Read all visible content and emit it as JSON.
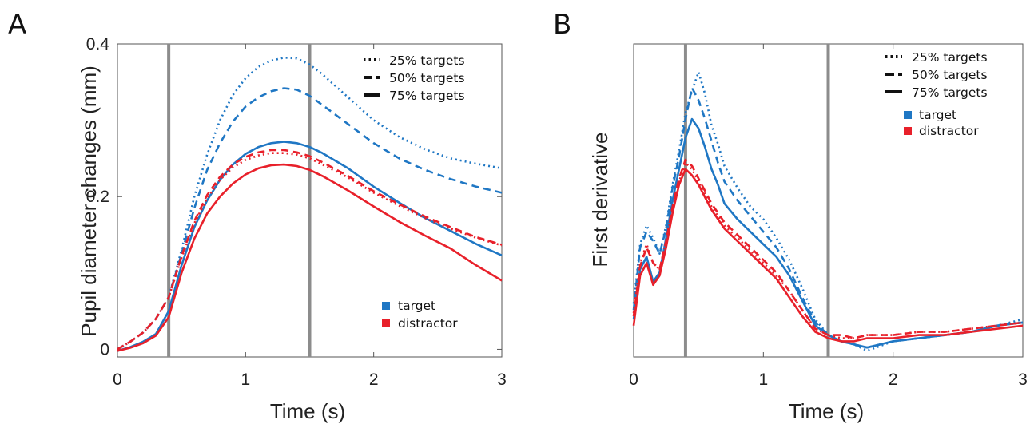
{
  "chart_data": [
    {
      "panel_label": "A",
      "type": "line",
      "xlabel": "Time (s)",
      "ylabel": "Pupil diameter changes (mm)",
      "xlim": [
        0,
        3
      ],
      "ylim": [
        -0.01,
        0.4
      ],
      "xticks": [
        0,
        1,
        2,
        3
      ],
      "yticks": [
        0,
        0.2,
        0.4
      ],
      "xtick_labels": [
        "0",
        "1",
        "2",
        "3"
      ],
      "ytick_labels": [
        "0",
        "0.2",
        "0.4"
      ],
      "vertical_lines": [
        0.4,
        1.5
      ],
      "legend_styles": [
        {
          "label": "25% targets",
          "dash": "dotted"
        },
        {
          "label": "50% targets",
          "dash": "dashed"
        },
        {
          "label": "75% targets",
          "dash": "solid"
        }
      ],
      "legend_colors": [
        {
          "label": "target",
          "color": "#1f77c4"
        },
        {
          "label": "distractor",
          "color": "#e8202a"
        }
      ],
      "series": [
        {
          "group": "target",
          "dash": "dotted",
          "color": "#1f77c4",
          "x": [
            0,
            0.1,
            0.2,
            0.3,
            0.4,
            0.5,
            0.6,
            0.7,
            0.8,
            0.9,
            1.0,
            1.1,
            1.2,
            1.3,
            1.4,
            1.5,
            1.6,
            1.8,
            2.0,
            2.2,
            2.4,
            2.6,
            2.8,
            3.0
          ],
          "y": [
            0,
            0.01,
            0.022,
            0.04,
            0.068,
            0.13,
            0.2,
            0.255,
            0.3,
            0.333,
            0.355,
            0.37,
            0.378,
            0.382,
            0.381,
            0.373,
            0.36,
            0.33,
            0.3,
            0.278,
            0.262,
            0.25,
            0.243,
            0.237
          ]
        },
        {
          "group": "target",
          "dash": "dashed",
          "color": "#1f77c4",
          "x": [
            0,
            0.1,
            0.2,
            0.3,
            0.4,
            0.5,
            0.6,
            0.7,
            0.8,
            0.9,
            1.0,
            1.1,
            1.2,
            1.3,
            1.4,
            1.5,
            1.6,
            1.8,
            2.0,
            2.2,
            2.4,
            2.6,
            2.8,
            3.0
          ],
          "y": [
            0,
            0.01,
            0.022,
            0.04,
            0.068,
            0.125,
            0.185,
            0.235,
            0.27,
            0.298,
            0.318,
            0.33,
            0.338,
            0.342,
            0.34,
            0.332,
            0.32,
            0.295,
            0.27,
            0.25,
            0.235,
            0.223,
            0.213,
            0.205
          ]
        },
        {
          "group": "target",
          "dash": "solid",
          "color": "#1f77c4",
          "x": [
            0,
            0.1,
            0.2,
            0.3,
            0.4,
            0.5,
            0.6,
            0.7,
            0.8,
            0.9,
            1.0,
            1.1,
            1.2,
            1.3,
            1.4,
            1.5,
            1.6,
            1.8,
            2.0,
            2.2,
            2.4,
            2.6,
            2.8,
            3.0
          ],
          "y": [
            -0.002,
            0.003,
            0.01,
            0.02,
            0.05,
            0.11,
            0.16,
            0.195,
            0.222,
            0.242,
            0.256,
            0.265,
            0.27,
            0.272,
            0.27,
            0.265,
            0.257,
            0.237,
            0.213,
            0.192,
            0.172,
            0.155,
            0.138,
            0.123
          ]
        },
        {
          "group": "distractor",
          "dash": "dotted",
          "color": "#e8202a",
          "x": [
            0,
            0.1,
            0.2,
            0.3,
            0.4,
            0.5,
            0.6,
            0.7,
            0.8,
            0.9,
            1.0,
            1.1,
            1.2,
            1.3,
            1.4,
            1.5,
            1.6,
            1.8,
            2.0,
            2.2,
            2.4,
            2.6,
            2.8,
            3.0
          ],
          "y": [
            0,
            0.01,
            0.022,
            0.04,
            0.068,
            0.12,
            0.165,
            0.198,
            0.222,
            0.238,
            0.248,
            0.254,
            0.257,
            0.257,
            0.255,
            0.25,
            0.242,
            0.225,
            0.205,
            0.188,
            0.172,
            0.158,
            0.146,
            0.136
          ]
        },
        {
          "group": "distractor",
          "dash": "dashed",
          "color": "#e8202a",
          "x": [
            0,
            0.1,
            0.2,
            0.3,
            0.4,
            0.5,
            0.6,
            0.7,
            0.8,
            0.9,
            1.0,
            1.1,
            1.2,
            1.3,
            1.4,
            1.5,
            1.6,
            1.8,
            2.0,
            2.2,
            2.4,
            2.6,
            2.8,
            3.0
          ],
          "y": [
            0,
            0.01,
            0.022,
            0.04,
            0.068,
            0.122,
            0.168,
            0.202,
            0.226,
            0.242,
            0.252,
            0.258,
            0.261,
            0.261,
            0.258,
            0.253,
            0.245,
            0.227,
            0.207,
            0.19,
            0.174,
            0.16,
            0.147,
            0.137
          ]
        },
        {
          "group": "distractor",
          "dash": "solid",
          "color": "#e8202a",
          "x": [
            0,
            0.1,
            0.2,
            0.3,
            0.4,
            0.5,
            0.6,
            0.7,
            0.8,
            0.9,
            1.0,
            1.1,
            1.2,
            1.3,
            1.4,
            1.5,
            1.6,
            1.8,
            2.0,
            2.2,
            2.4,
            2.6,
            2.8,
            3.0
          ],
          "y": [
            -0.002,
            0.002,
            0.008,
            0.018,
            0.042,
            0.1,
            0.145,
            0.178,
            0.2,
            0.217,
            0.229,
            0.237,
            0.241,
            0.242,
            0.24,
            0.235,
            0.227,
            0.208,
            0.187,
            0.167,
            0.149,
            0.132,
            0.11,
            0.09
          ]
        }
      ]
    },
    {
      "panel_label": "B",
      "type": "line",
      "xlabel": "Time (s)",
      "ylabel": "First derivative",
      "xlim": [
        0,
        3
      ],
      "ylim": [
        0,
        1
      ],
      "xticks": [
        0,
        1,
        2,
        3
      ],
      "xtick_labels": [
        "0",
        "1",
        "2",
        "3"
      ],
      "yticks": [],
      "ytick_labels": [],
      "vertical_lines": [
        0.4,
        1.5
      ],
      "legend_styles": [
        {
          "label": "25% targets",
          "dash": "dotted"
        },
        {
          "label": "50% targets",
          "dash": "dashed"
        },
        {
          "label": "75% targets",
          "dash": "solid"
        }
      ],
      "legend_colors": [
        {
          "label": "target",
          "color": "#1f77c4"
        },
        {
          "label": "distractor",
          "color": "#e8202a"
        }
      ],
      "series": [
        {
          "group": "target",
          "dash": "dotted",
          "color": "#1f77c4",
          "x": [
            0,
            0.05,
            0.1,
            0.15,
            0.2,
            0.25,
            0.3,
            0.35,
            0.4,
            0.45,
            0.5,
            0.55,
            0.6,
            0.65,
            0.7,
            0.8,
            0.9,
            1.0,
            1.1,
            1.2,
            1.3,
            1.4,
            1.5,
            1.6,
            1.7,
            1.8,
            2.0,
            2.2,
            2.4,
            2.6,
            2.8,
            3.0
          ],
          "y": [
            0.17,
            0.36,
            0.42,
            0.38,
            0.33,
            0.42,
            0.55,
            0.66,
            0.78,
            0.85,
            0.91,
            0.84,
            0.74,
            0.68,
            0.61,
            0.54,
            0.48,
            0.44,
            0.38,
            0.31,
            0.22,
            0.12,
            0.07,
            0.05,
            0.04,
            0.02,
            0.05,
            0.06,
            0.07,
            0.08,
            0.1,
            0.12
          ]
        },
        {
          "group": "target",
          "dash": "dashed",
          "color": "#1f77c4",
          "x": [
            0,
            0.05,
            0.1,
            0.15,
            0.2,
            0.25,
            0.3,
            0.35,
            0.4,
            0.45,
            0.5,
            0.55,
            0.6,
            0.65,
            0.7,
            0.8,
            0.9,
            1.0,
            1.1,
            1.2,
            1.3,
            1.4,
            1.5,
            1.6,
            1.7,
            1.8,
            2.0,
            2.2,
            2.4,
            2.6,
            2.8,
            3.0
          ],
          "y": [
            0.15,
            0.35,
            0.4,
            0.37,
            0.33,
            0.41,
            0.54,
            0.64,
            0.76,
            0.86,
            0.82,
            0.76,
            0.69,
            0.62,
            0.56,
            0.5,
            0.45,
            0.4,
            0.35,
            0.28,
            0.19,
            0.11,
            0.07,
            0.05,
            0.04,
            0.03,
            0.05,
            0.06,
            0.07,
            0.08,
            0.1,
            0.11
          ]
        },
        {
          "group": "target",
          "dash": "solid",
          "color": "#1f77c4",
          "x": [
            0,
            0.05,
            0.1,
            0.15,
            0.2,
            0.25,
            0.3,
            0.35,
            0.4,
            0.45,
            0.5,
            0.55,
            0.6,
            0.65,
            0.7,
            0.8,
            0.9,
            1.0,
            1.1,
            1.2,
            1.3,
            1.4,
            1.5,
            1.6,
            1.7,
            1.8,
            2.0,
            2.2,
            2.4,
            2.6,
            2.8,
            3.0
          ],
          "y": [
            0.12,
            0.28,
            0.32,
            0.24,
            0.27,
            0.38,
            0.5,
            0.6,
            0.7,
            0.76,
            0.73,
            0.67,
            0.6,
            0.55,
            0.49,
            0.44,
            0.4,
            0.36,
            0.32,
            0.26,
            0.18,
            0.1,
            0.07,
            0.05,
            0.04,
            0.03,
            0.05,
            0.06,
            0.07,
            0.08,
            0.1,
            0.11
          ]
        },
        {
          "group": "distractor",
          "dash": "dotted",
          "color": "#e8202a",
          "x": [
            0,
            0.05,
            0.1,
            0.15,
            0.2,
            0.25,
            0.3,
            0.35,
            0.4,
            0.45,
            0.5,
            0.55,
            0.6,
            0.65,
            0.7,
            0.8,
            0.9,
            1.0,
            1.1,
            1.2,
            1.3,
            1.4,
            1.5,
            1.6,
            1.7,
            1.8,
            2.0,
            2.2,
            2.4,
            2.6,
            2.8,
            3.0
          ],
          "y": [
            0.14,
            0.3,
            0.36,
            0.3,
            0.28,
            0.37,
            0.47,
            0.56,
            0.62,
            0.6,
            0.56,
            0.52,
            0.48,
            0.45,
            0.42,
            0.38,
            0.34,
            0.3,
            0.26,
            0.21,
            0.15,
            0.09,
            0.07,
            0.06,
            0.06,
            0.07,
            0.07,
            0.08,
            0.08,
            0.09,
            0.1,
            0.11
          ]
        },
        {
          "group": "distractor",
          "dash": "dashed",
          "color": "#e8202a",
          "x": [
            0,
            0.05,
            0.1,
            0.15,
            0.2,
            0.25,
            0.3,
            0.35,
            0.4,
            0.45,
            0.5,
            0.55,
            0.6,
            0.65,
            0.7,
            0.8,
            0.9,
            1.0,
            1.1,
            1.2,
            1.3,
            1.4,
            1.5,
            1.6,
            1.7,
            1.8,
            2.0,
            2.2,
            2.4,
            2.6,
            2.8,
            3.0
          ],
          "y": [
            0.13,
            0.29,
            0.35,
            0.3,
            0.28,
            0.37,
            0.48,
            0.57,
            0.63,
            0.61,
            0.57,
            0.53,
            0.49,
            0.46,
            0.43,
            0.39,
            0.35,
            0.31,
            0.27,
            0.21,
            0.15,
            0.09,
            0.07,
            0.07,
            0.06,
            0.07,
            0.07,
            0.08,
            0.08,
            0.09,
            0.1,
            0.11
          ]
        },
        {
          "group": "distractor",
          "dash": "solid",
          "color": "#e8202a",
          "x": [
            0,
            0.05,
            0.1,
            0.15,
            0.2,
            0.25,
            0.3,
            0.35,
            0.4,
            0.45,
            0.5,
            0.55,
            0.6,
            0.65,
            0.7,
            0.8,
            0.9,
            1.0,
            1.1,
            1.2,
            1.3,
            1.4,
            1.5,
            1.6,
            1.7,
            1.8,
            2.0,
            2.2,
            2.4,
            2.6,
            2.8,
            3.0
          ],
          "y": [
            0.1,
            0.26,
            0.3,
            0.23,
            0.26,
            0.35,
            0.46,
            0.55,
            0.6,
            0.58,
            0.55,
            0.51,
            0.47,
            0.44,
            0.41,
            0.37,
            0.33,
            0.29,
            0.25,
            0.19,
            0.13,
            0.08,
            0.06,
            0.05,
            0.05,
            0.06,
            0.06,
            0.07,
            0.07,
            0.08,
            0.09,
            0.1
          ]
        }
      ]
    }
  ]
}
